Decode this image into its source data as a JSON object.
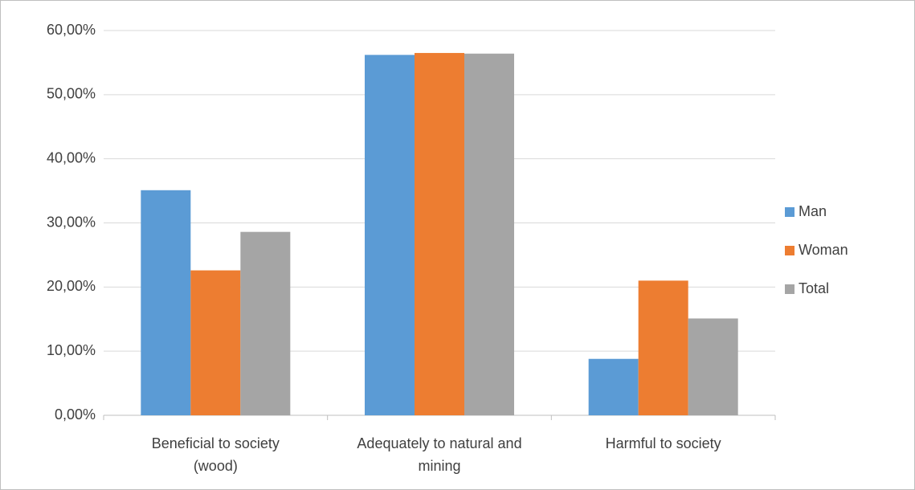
{
  "chart_data": {
    "type": "bar",
    "categories": [
      "Beneficial to society (wood)",
      "Adequately to natural and mining",
      "Harmful to society"
    ],
    "series": [
      {
        "name": "Man",
        "color": "#5b9bd5",
        "values": [
          35.1,
          56.2,
          8.8
        ]
      },
      {
        "name": "Woman",
        "color": "#ed7d31",
        "values": [
          22.6,
          56.5,
          21.0
        ]
      },
      {
        "name": "Total",
        "color": "#a5a5a5",
        "values": [
          28.6,
          56.4,
          15.1
        ]
      }
    ],
    "ylim": [
      0,
      60
    ],
    "yticks": [
      {
        "value": 0,
        "label": "0,00%"
      },
      {
        "value": 10,
        "label": "10,00%"
      },
      {
        "value": 20,
        "label": "20,00%"
      },
      {
        "value": 30,
        "label": "30,00%"
      },
      {
        "value": 40,
        "label": "40,00%"
      },
      {
        "value": 50,
        "label": "50,00%"
      },
      {
        "value": 60,
        "label": "60,00%"
      }
    ],
    "grid": true,
    "legend": "right"
  }
}
